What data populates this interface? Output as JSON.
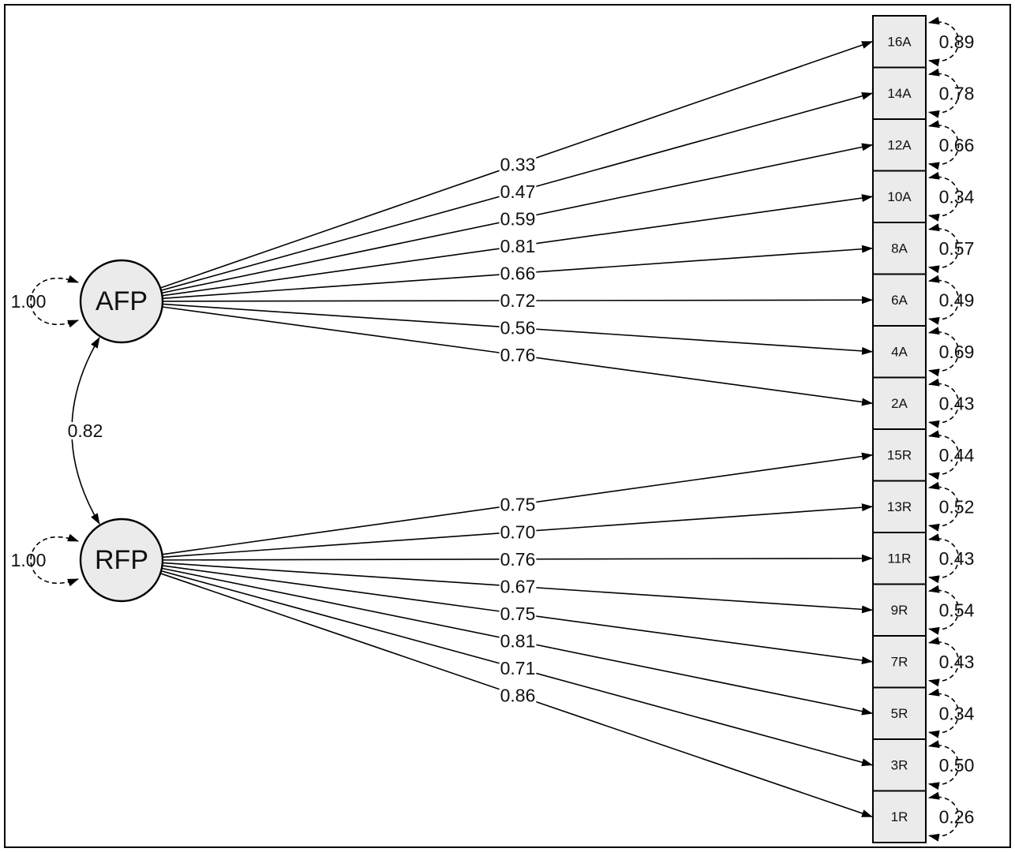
{
  "factors": [
    {
      "id": "AFP",
      "label": "AFP",
      "variance": "1.00"
    },
    {
      "id": "RFP",
      "label": "RFP",
      "variance": "1.00"
    }
  ],
  "correlation": {
    "label": "0.82"
  },
  "indicators": [
    {
      "label": "16A",
      "factor": "AFP",
      "loading": "0.33",
      "residual": "0.89"
    },
    {
      "label": "14A",
      "factor": "AFP",
      "loading": "0.47",
      "residual": "0.78"
    },
    {
      "label": "12A",
      "factor": "AFP",
      "loading": "0.59",
      "residual": "0.66"
    },
    {
      "label": "10A",
      "factor": "AFP",
      "loading": "0.81",
      "residual": "0.34"
    },
    {
      "label": "8A",
      "factor": "AFP",
      "loading": "0.66",
      "residual": "0.57"
    },
    {
      "label": "6A",
      "factor": "AFP",
      "loading": "0.72",
      "residual": "0.49"
    },
    {
      "label": "4A",
      "factor": "AFP",
      "loading": "0.56",
      "residual": "0.69"
    },
    {
      "label": "2A",
      "factor": "AFP",
      "loading": "0.76",
      "residual": "0.43"
    },
    {
      "label": "15R",
      "factor": "RFP",
      "loading": "0.75",
      "residual": "0.44"
    },
    {
      "label": "13R",
      "factor": "RFP",
      "loading": "0.70",
      "residual": "0.52"
    },
    {
      "label": "11R",
      "factor": "RFP",
      "loading": "0.76",
      "residual": "0.43"
    },
    {
      "label": "9R",
      "factor": "RFP",
      "loading": "0.67",
      "residual": "0.54"
    },
    {
      "label": "7R",
      "factor": "RFP",
      "loading": "0.75",
      "residual": "0.43"
    },
    {
      "label": "5R",
      "factor": "RFP",
      "loading": "0.81",
      "residual": "0.34"
    },
    {
      "label": "3R",
      "factor": "RFP",
      "loading": "0.71",
      "residual": "0.50"
    },
    {
      "label": "1R",
      "factor": "RFP",
      "loading": "0.86",
      "residual": "0.26"
    }
  ]
}
